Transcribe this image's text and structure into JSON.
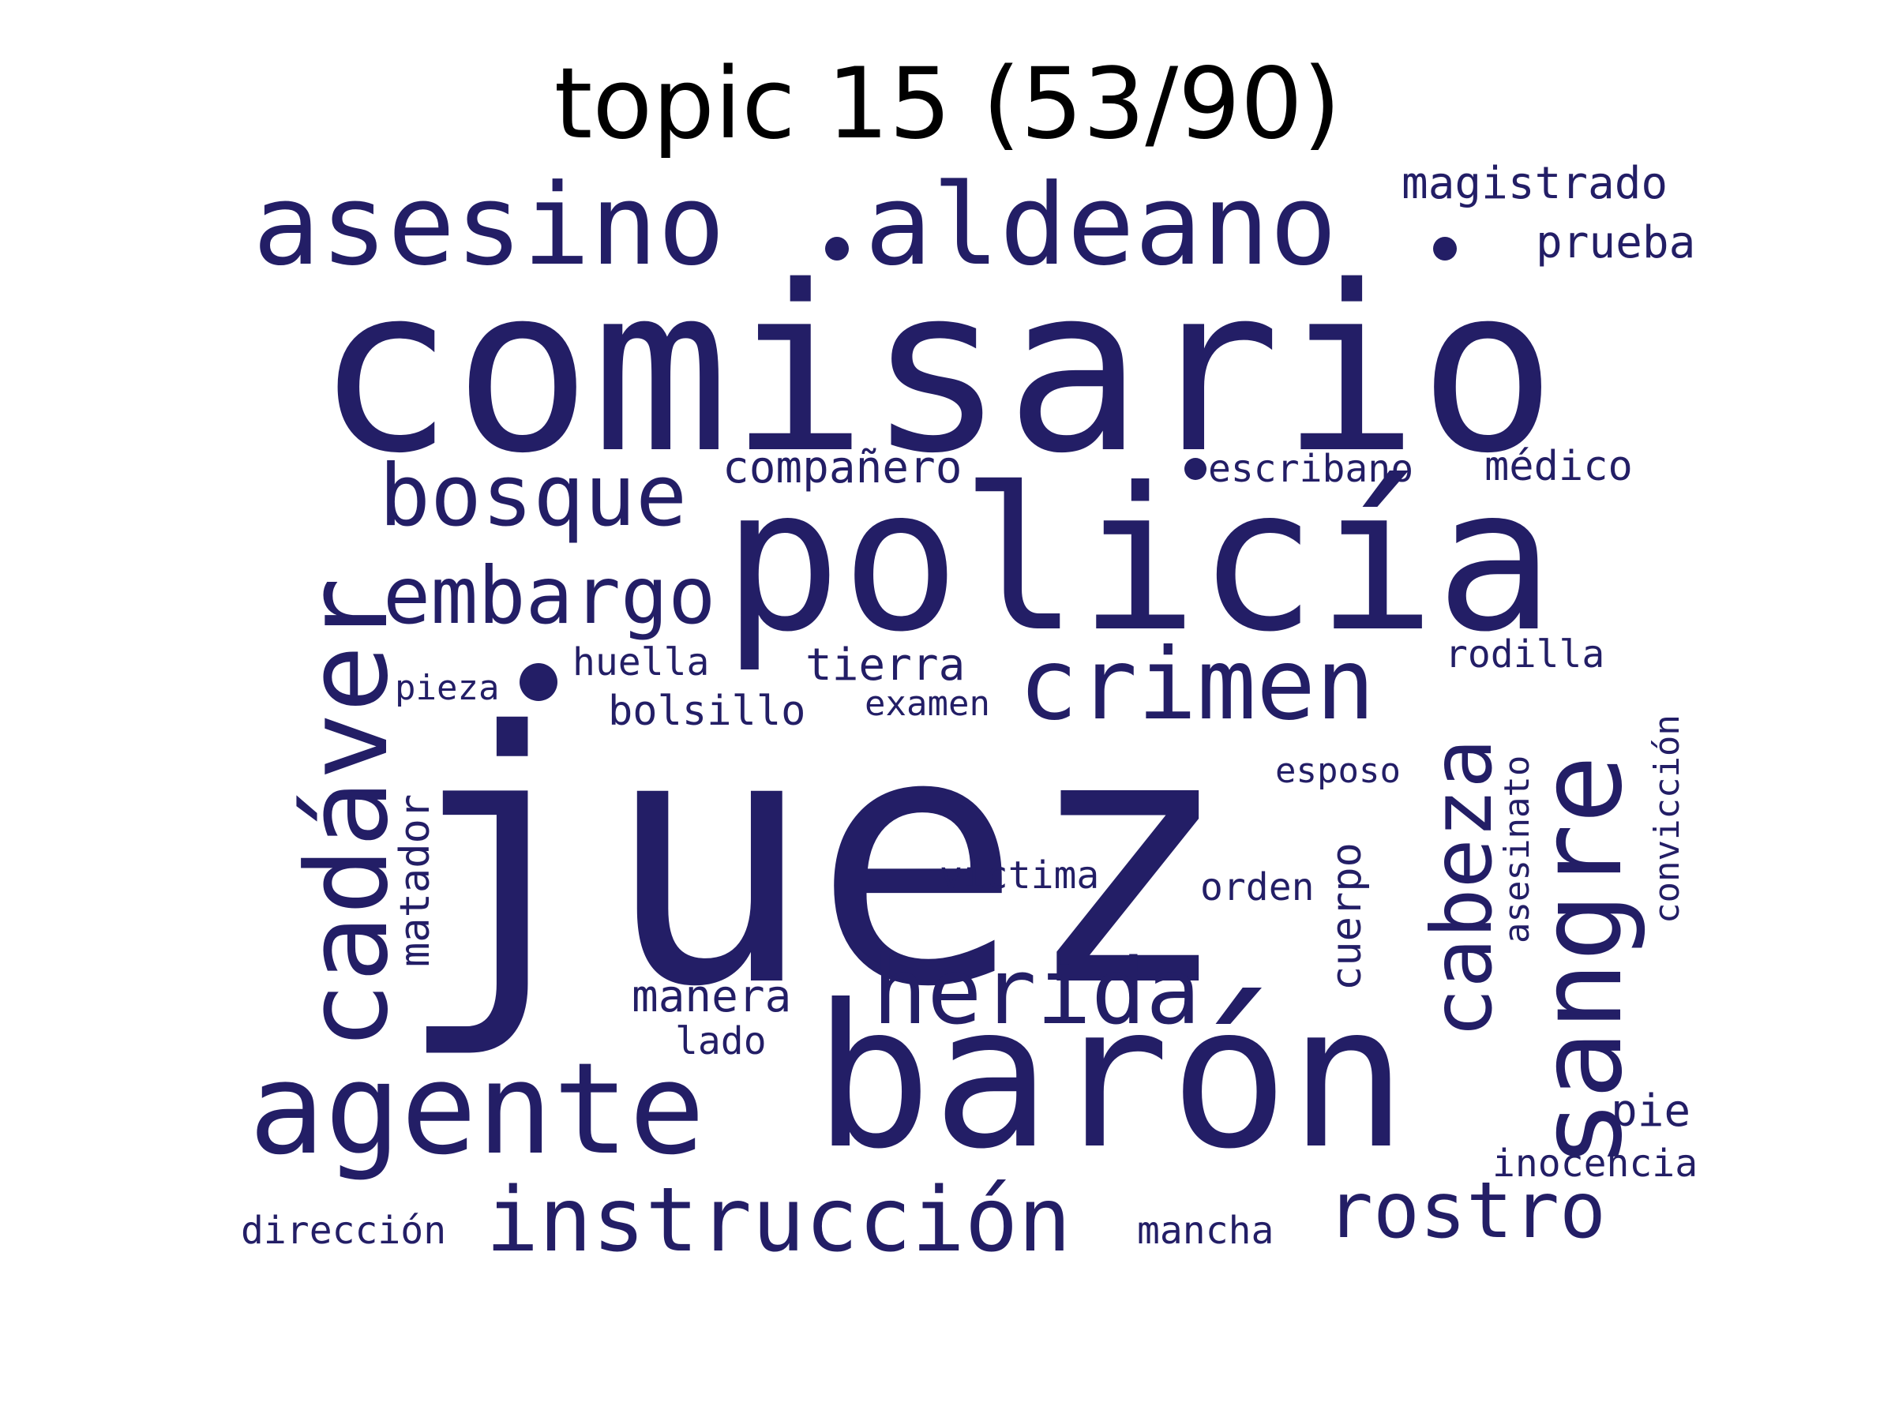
{
  "title": "topic 15 (53/90)",
  "colors": {
    "word": "#231e66",
    "background": "#ffffff"
  },
  "words": {
    "juez": "juez",
    "comisario": "comisario",
    "policia": "policía",
    "baron": "barón",
    "asesino": "asesino",
    "aldeano": "aldeano",
    "agente": "agente",
    "cadaver": "cadáver",
    "sangre": "sangre",
    "bosque": "bosque",
    "embargo": "embargo",
    "crimen": "crimen",
    "cabeza": "cabeza",
    "herida": "herida",
    "instruccion": "instrucción",
    "rostro": "rostro",
    "magistrado": "magistrado",
    "prueba": "prueba",
    "companero": "compañero",
    "escribano": "escribano",
    "medico": "médico",
    "huella": "huella",
    "tierra": "tierra",
    "rodilla": "rodilla",
    "pieza": "pieza",
    "bolsillo": "bolsillo",
    "examen": "examen",
    "conviccion": "convicción",
    "esposo": "esposo",
    "matador": "matador",
    "asesinato": "asesinato",
    "victima": "víctima",
    "orden": "orden",
    "cuerpo": "cuerpo",
    "manera": "manera",
    "lado": "lado",
    "pie": "pie",
    "inocencia": "inocencia",
    "direccion": "dirección",
    "mancha": "mancha"
  }
}
